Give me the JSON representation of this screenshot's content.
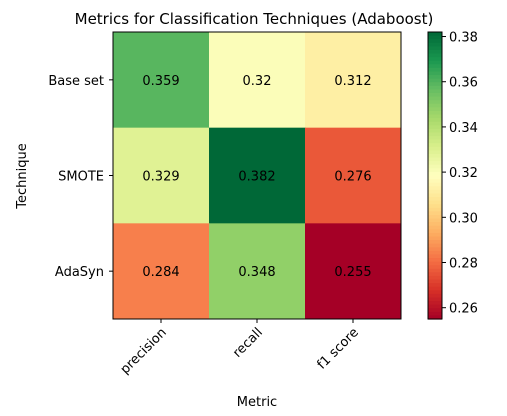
{
  "chart_data": {
    "type": "heatmap",
    "title": "Metrics for Classification Techniques (Adaboost)",
    "xlabel": "Metric",
    "ylabel": "Technique",
    "x_categories": [
      "precision",
      "recall",
      "f1 score"
    ],
    "y_categories": [
      "Base set",
      "SMOTE",
      "AdaSyn"
    ],
    "values": [
      [
        0.359,
        0.32,
        0.312
      ],
      [
        0.329,
        0.382,
        0.276
      ],
      [
        0.284,
        0.348,
        0.255
      ]
    ],
    "value_labels": [
      [
        "0.359",
        "0.32",
        "0.312"
      ],
      [
        "0.329",
        "0.382",
        "0.276"
      ],
      [
        "0.284",
        "0.348",
        "0.255"
      ]
    ],
    "colormap": "RdYlGn",
    "color_range": [
      0.255,
      0.382
    ],
    "colorbar_ticks": [
      "0.26",
      "0.28",
      "0.30",
      "0.32",
      "0.34",
      "0.36",
      "0.38"
    ],
    "colorbar_tick_values": [
      0.26,
      0.28,
      0.3,
      0.32,
      0.34,
      0.36,
      0.38
    ]
  }
}
